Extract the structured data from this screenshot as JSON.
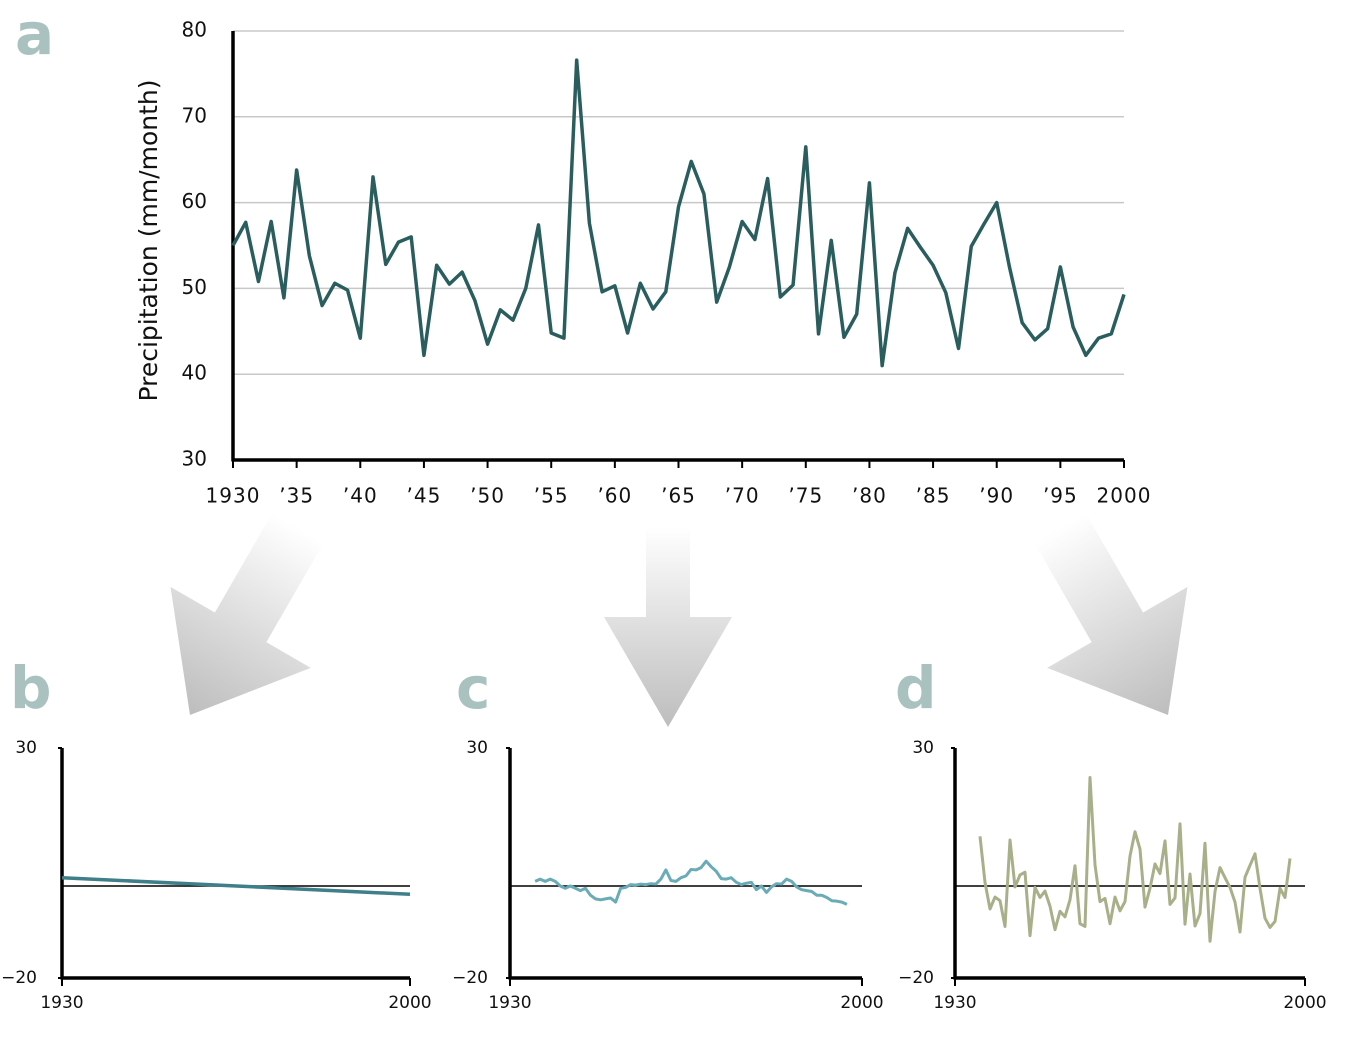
{
  "chart_data": [
    {
      "type": "line",
      "panel": "a",
      "ylabel": "Precipitation (mm/month)",
      "color": "#2a5e5e",
      "x": [
        1930,
        1931,
        1932,
        1933,
        1934,
        1935,
        1936,
        1937,
        1938,
        1939,
        1940,
        1941,
        1942,
        1943,
        1944,
        1945,
        1946,
        1947,
        1948,
        1949,
        1950,
        1951,
        1952,
        1953,
        1954,
        1955,
        1956,
        1957,
        1958,
        1959,
        1960,
        1961,
        1962,
        1963,
        1964,
        1965,
        1966,
        1967,
        1968,
        1969,
        1970,
        1971,
        1972,
        1973,
        1974,
        1975,
        1976,
        1977,
        1978,
        1979,
        1980,
        1981,
        1982,
        1983,
        1984,
        1985,
        1986,
        1987,
        1988,
        1989,
        1990,
        1991,
        1992,
        1993,
        1994,
        1995,
        1996,
        1997,
        1998,
        1999,
        2000
      ],
      "values": [
        55,
        57.7,
        50.8,
        57.8,
        48.9,
        63.8,
        53.8,
        48,
        50.6,
        49.8,
        44.2,
        63,
        52.8,
        55.4,
        56,
        42.2,
        52.7,
        50.5,
        51.9,
        48.6,
        43.5,
        47.5,
        46.3,
        50,
        57.4,
        44.8,
        44.2,
        76.6,
        57.6,
        49.6,
        50.3,
        44.8,
        50.6,
        47.6,
        49.6,
        59.5,
        64.8,
        61,
        48.4,
        52.5,
        57.8,
        55.7,
        62.8,
        49,
        50.4,
        66.5,
        44.7,
        55.6,
        44.3,
        47,
        62.3,
        41,
        51.8,
        57,
        54.8,
        52.7,
        49.5,
        43,
        54.9,
        57.5,
        60,
        52.5,
        46,
        44,
        45.3,
        52.5,
        45.5,
        42.2,
        44.2,
        44.7,
        49.3
      ],
      "xlim": [
        1930,
        2000
      ],
      "xticks": [
        1930,
        {
          "value": 1935,
          "label": "’35"
        },
        {
          "value": 1940,
          "label": "’40"
        },
        {
          "value": 1945,
          "label": "’45"
        },
        {
          "value": 1950,
          "label": "’50"
        },
        {
          "value": 1955,
          "label": "’55"
        },
        {
          "value": 1960,
          "label": "’60"
        },
        {
          "value": 1965,
          "label": "’65"
        },
        {
          "value": 1970,
          "label": "’70"
        },
        {
          "value": 1975,
          "label": "’75"
        },
        {
          "value": 1980,
          "label": "’80"
        },
        {
          "value": 1985,
          "label": "’85"
        },
        {
          "value": 1990,
          "label": "’90"
        },
        {
          "value": 1995,
          "label": "’95"
        },
        2000
      ],
      "ylim": [
        30,
        80
      ],
      "yticks": [
        30,
        40,
        50,
        60,
        70,
        80
      ],
      "grid": true
    },
    {
      "type": "line",
      "panel": "b",
      "color": "#3f7f8a",
      "x": [
        1930,
        2000
      ],
      "values": [
        1.8,
        -1.8
      ],
      "xlim": [
        1930,
        2000
      ],
      "xticks": [
        1930,
        2000
      ],
      "ylim": [
        -20,
        30
      ],
      "yticks": [
        {
          "value": -20,
          "label": "−20"
        },
        30
      ],
      "hline": 0,
      "grid": false
    },
    {
      "type": "line",
      "panel": "c",
      "color": "#6aabb8",
      "x": [
        1935,
        1936,
        1937,
        1938,
        1939,
        1940,
        1941,
        1942,
        1943,
        1944,
        1945,
        1946,
        1947,
        1948,
        1949,
        1950,
        1951,
        1952,
        1953,
        1954,
        1955,
        1956,
        1957,
        1958,
        1959,
        1960,
        1961,
        1962,
        1963,
        1964,
        1965,
        1966,
        1967,
        1968,
        1969,
        1970,
        1971,
        1972,
        1973,
        1974,
        1975,
        1976,
        1977,
        1978,
        1979,
        1980,
        1981,
        1982,
        1983,
        1984,
        1985,
        1986,
        1987,
        1988,
        1989,
        1990,
        1991,
        1992,
        1993,
        1994,
        1995,
        1996,
        1997
      ],
      "values": [
        1,
        1.5,
        1,
        1.5,
        1,
        0,
        -0.5,
        0,
        -0.5,
        -1,
        -0.5,
        -2,
        -2.8,
        -3,
        -2.8,
        -2.6,
        -3.5,
        -0.5,
        -0.3,
        0.3,
        0.2,
        0.4,
        0.3,
        0.5,
        0.4,
        1.5,
        3.5,
        1.2,
        1,
        1.8,
        2.2,
        3.6,
        3.5,
        4,
        5.4,
        4.2,
        3.2,
        1.6,
        1.5,
        1.8,
        0.8,
        0.3,
        0.6,
        0.8,
        -0.8,
        0,
        -1.4,
        -0.2,
        0.5,
        0.4,
        1.5,
        1,
        -0.2,
        -0.8,
        -1,
        -1.2,
        -2,
        -2,
        -2.5,
        -3.2,
        -3.3,
        -3.5,
        -4
      ],
      "xlim": [
        1930,
        2000
      ],
      "xticks": [
        1930,
        2000
      ],
      "ylim": [
        -20,
        30
      ],
      "yticks": [
        {
          "value": -20,
          "label": "−20"
        },
        30
      ],
      "hline": 0,
      "grid": false
    },
    {
      "type": "line",
      "panel": "d",
      "color": "#a8b08a",
      "x": [
        1935,
        1936,
        1937,
        1938,
        1939,
        1940,
        1941,
        1942,
        1943,
        1944,
        1945,
        1946,
        1947,
        1948,
        1949,
        1950,
        1951,
        1952,
        1953,
        1954,
        1955,
        1956,
        1957,
        1958,
        1959,
        1960,
        1961,
        1962,
        1963,
        1964,
        1965,
        1966,
        1967,
        1968,
        1969,
        1970,
        1971,
        1972,
        1973,
        1974,
        1975,
        1976,
        1977,
        1978,
        1979,
        1980,
        1981,
        1982,
        1983,
        1984,
        1985,
        1986,
        1987,
        1988,
        1989,
        1990,
        1991,
        1992,
        1993,
        1994,
        1995,
        1996,
        1997
      ],
      "values": [
        10.8,
        0.8,
        -5,
        -2.4,
        -3.2,
        -8.8,
        10,
        -0.2,
        2.4,
        3,
        -10.8,
        -0.3,
        -2.5,
        -1.1,
        -4.4,
        -9.5,
        -5.5,
        -6.7,
        -3,
        4.4,
        -8.2,
        -8.8,
        23.6,
        4.6,
        -3.4,
        -2.7,
        -8.2,
        -2.4,
        -5.4,
        -3.4,
        6.5,
        11.8,
        8,
        -4.6,
        -0.5,
        4.8,
        2.7,
        9.8,
        -4,
        -2.6,
        13.5,
        -8.3,
        2.6,
        -8.7,
        -6,
        9.3,
        -12,
        -1.2,
        4,
        1.8,
        -0.3,
        -3.5,
        -10,
        1.9,
        4.5,
        7,
        -0.5,
        -7,
        -9,
        -7.7,
        -0.5,
        -2.5,
        6
      ],
      "xlim": [
        1930,
        2000
      ],
      "xticks": [
        1930,
        2000
      ],
      "ylim": [
        -20,
        30
      ],
      "yticks": [
        {
          "value": -20,
          "label": "−20"
        },
        30
      ],
      "hline": 0,
      "grid": false
    }
  ]
}
